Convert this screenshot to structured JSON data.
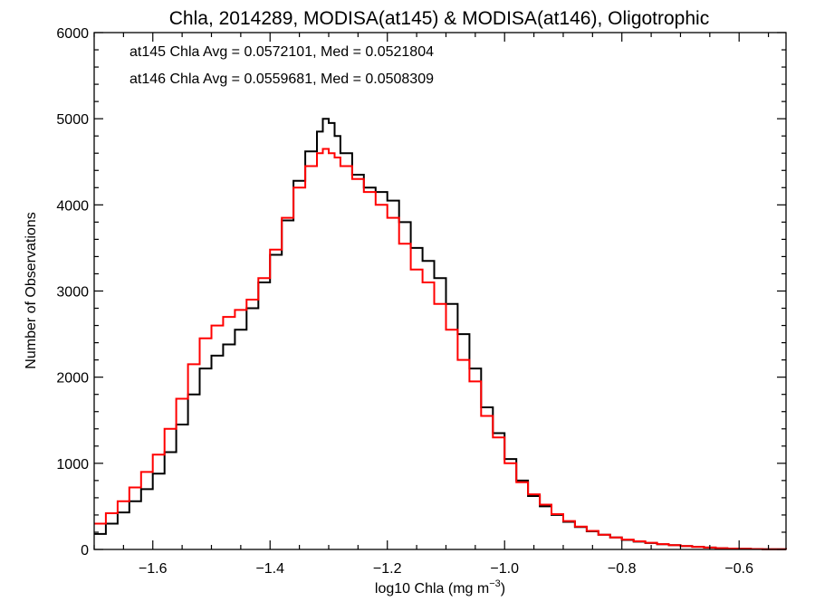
{
  "chart_data": {
    "type": "line",
    "step": true,
    "title": "Chla, 2014289, MODISA(at145) & MODISA(at146), Oligotrophic",
    "xlabel_main": "log10 Chla (mg m",
    "xlabel_exp": "−3",
    "xlabel_tail": ")",
    "ylabel": "Number of Observations",
    "xlim": [
      -1.7,
      -0.52
    ],
    "ylim": [
      0,
      6000
    ],
    "xticks": [
      -1.6,
      -1.4,
      -1.2,
      -1.0,
      -0.8,
      -0.6
    ],
    "xtick_labels": [
      "−1.6",
      "−1.4",
      "−1.2",
      "−1.0",
      "−0.8",
      "−0.6"
    ],
    "yticks": [
      0,
      1000,
      2000,
      3000,
      4000,
      5000,
      6000
    ],
    "ytick_labels": [
      "0",
      "1000",
      "2000",
      "3000",
      "4000",
      "5000",
      "6000"
    ],
    "annotations": [
      {
        "text": "at145 Chla Avg = 0.0572101, Med = 0.0521804",
        "color": "#000000"
      },
      {
        "text": "at146 Chla Avg = 0.0559681, Med = 0.0508309",
        "color": "#ff0000"
      }
    ],
    "series": [
      {
        "color": "#000000",
        "x": [
          -1.7,
          -1.68,
          -1.66,
          -1.64,
          -1.62,
          -1.6,
          -1.58,
          -1.56,
          -1.54,
          -1.52,
          -1.5,
          -1.48,
          -1.46,
          -1.44,
          -1.42,
          -1.4,
          -1.38,
          -1.36,
          -1.34,
          -1.32,
          -1.31,
          -1.3,
          -1.29,
          -1.28,
          -1.26,
          -1.24,
          -1.22,
          -1.2,
          -1.18,
          -1.16,
          -1.14,
          -1.12,
          -1.1,
          -1.08,
          -1.06,
          -1.04,
          -1.02,
          -1.0,
          -0.98,
          -0.96,
          -0.94,
          -0.92,
          -0.9,
          -0.88,
          -0.86,
          -0.84,
          -0.82,
          -0.8,
          -0.78,
          -0.76,
          -0.74,
          -0.72,
          -0.7,
          -0.68,
          -0.66,
          -0.64,
          -0.62,
          -0.6,
          -0.58,
          -0.56,
          -0.54,
          -0.52
        ],
        "y": [
          180,
          300,
          430,
          560,
          700,
          880,
          1130,
          1450,
          1800,
          2100,
          2250,
          2380,
          2550,
          2800,
          3100,
          3420,
          3820,
          4280,
          4620,
          4850,
          5000,
          4950,
          4800,
          4600,
          4350,
          4200,
          4150,
          4050,
          3800,
          3500,
          3350,
          3150,
          2850,
          2500,
          2100,
          1650,
          1350,
          1050,
          800,
          620,
          500,
          400,
          320,
          260,
          210,
          170,
          140,
          110,
          90,
          75,
          60,
          50,
          40,
          30,
          22,
          15,
          10,
          7,
          5,
          3,
          2,
          1
        ]
      },
      {
        "color": "#ff0000",
        "x": [
          -1.7,
          -1.68,
          -1.66,
          -1.64,
          -1.62,
          -1.6,
          -1.58,
          -1.56,
          -1.54,
          -1.52,
          -1.5,
          -1.48,
          -1.46,
          -1.44,
          -1.42,
          -1.4,
          -1.38,
          -1.36,
          -1.34,
          -1.32,
          -1.31,
          -1.3,
          -1.29,
          -1.28,
          -1.26,
          -1.24,
          -1.22,
          -1.2,
          -1.18,
          -1.16,
          -1.14,
          -1.12,
          -1.1,
          -1.08,
          -1.06,
          -1.04,
          -1.02,
          -1.0,
          -0.98,
          -0.96,
          -0.94,
          -0.92,
          -0.9,
          -0.88,
          -0.86,
          -0.84,
          -0.82,
          -0.8,
          -0.78,
          -0.76,
          -0.74,
          -0.72,
          -0.7,
          -0.68,
          -0.66,
          -0.64,
          -0.62,
          -0.6,
          -0.58,
          -0.56,
          -0.54,
          -0.52
        ],
        "y": [
          300,
          420,
          560,
          720,
          900,
          1100,
          1400,
          1750,
          2150,
          2450,
          2600,
          2700,
          2780,
          2900,
          3150,
          3480,
          3850,
          4200,
          4450,
          4600,
          4650,
          4600,
          4550,
          4450,
          4300,
          4150,
          4000,
          3850,
          3550,
          3250,
          3100,
          2850,
          2550,
          2200,
          1950,
          1550,
          1300,
          1000,
          780,
          640,
          520,
          410,
          330,
          265,
          215,
          170,
          140,
          115,
          95,
          78,
          62,
          50,
          40,
          30,
          22,
          15,
          10,
          7,
          5,
          3,
          2,
          1
        ]
      }
    ]
  }
}
